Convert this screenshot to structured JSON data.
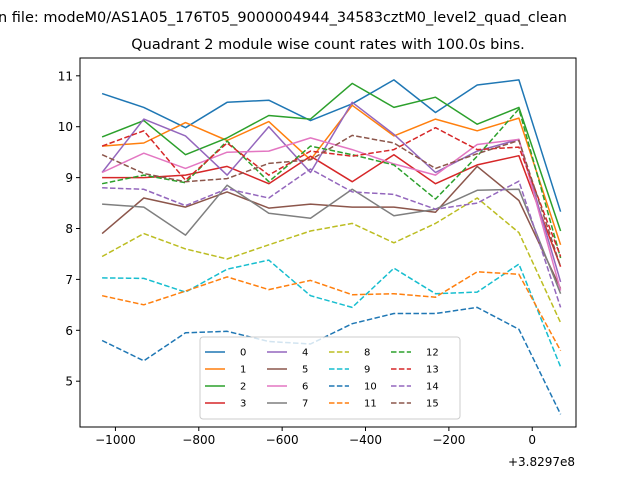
{
  "chart_data": {
    "type": "line",
    "suptitle": "n file: modeM0/AS1A05_176T05_9000004944_34583cztM0_level2_quad_clean",
    "title": "Quadrant 2 module wise count rates with 100.0s bins.",
    "xlabel": "",
    "ylabel": "",
    "x_offset_label": "+3.8297e8",
    "xlim": [
      -1085,
      105
    ],
    "ylim": [
      4.1,
      11.35
    ],
    "xticks": [
      -1000,
      -800,
      -600,
      -400,
      -200,
      0
    ],
    "xtick_labels": [
      "−1000",
      "−800",
      "−600",
      "−400",
      "−200",
      "0"
    ],
    "yticks": [
      5,
      6,
      7,
      8,
      9,
      10,
      11
    ],
    "ytick_labels": [
      "5",
      "6",
      "7",
      "8",
      "9",
      "10",
      "11"
    ],
    "legend_position": "lower center",
    "legend_columns": 4,
    "x": [
      -1032,
      -932,
      -832,
      -732,
      -632,
      -532,
      -432,
      -332,
      -232,
      -132,
      -32,
      68
    ],
    "series": [
      {
        "name": "0",
        "color": "#1f77b4",
        "dash": "solid",
        "values": [
          10.65,
          10.38,
          9.98,
          10.48,
          10.52,
          10.12,
          10.45,
          10.92,
          10.28,
          10.82,
          10.92,
          8.33
        ]
      },
      {
        "name": "1",
        "color": "#ff7f0e",
        "dash": "solid",
        "values": [
          9.62,
          9.68,
          10.08,
          9.73,
          10.1,
          9.35,
          10.42,
          9.82,
          10.15,
          9.92,
          10.17,
          7.68
        ]
      },
      {
        "name": "2",
        "color": "#2ca02c",
        "dash": "solid",
        "values": [
          9.8,
          10.12,
          9.45,
          9.78,
          10.22,
          10.15,
          10.85,
          10.38,
          10.58,
          10.05,
          10.38,
          7.95
        ]
      },
      {
        "name": "3",
        "color": "#d62728",
        "dash": "solid",
        "values": [
          9.0,
          9.0,
          9.05,
          9.22,
          8.88,
          9.42,
          8.92,
          9.45,
          8.88,
          9.25,
          9.43,
          7.25
        ]
      },
      {
        "name": "4",
        "color": "#9467bd",
        "dash": "solid",
        "values": [
          9.1,
          10.15,
          9.82,
          9.05,
          10.0,
          9.1,
          10.48,
          9.85,
          9.1,
          9.52,
          9.75,
          6.95
        ]
      },
      {
        "name": "5",
        "color": "#8c564b",
        "dash": "solid",
        "values": [
          7.9,
          8.6,
          8.42,
          8.72,
          8.4,
          8.48,
          8.42,
          8.42,
          8.32,
          9.22,
          8.55,
          6.82
        ]
      },
      {
        "name": "6",
        "color": "#e377c2",
        "dash": "solid",
        "values": [
          9.1,
          9.48,
          9.18,
          9.5,
          9.52,
          9.78,
          9.55,
          9.27,
          9.05,
          9.65,
          9.75,
          6.78
        ]
      },
      {
        "name": "7",
        "color": "#7f7f7f",
        "dash": "solid",
        "values": [
          8.48,
          8.42,
          7.87,
          8.85,
          8.3,
          8.2,
          8.77,
          8.25,
          8.38,
          8.75,
          8.77,
          6.72
        ]
      },
      {
        "name": "8",
        "color": "#bcbd22",
        "dash": "dashed",
        "values": [
          7.45,
          7.9,
          7.6,
          7.4,
          7.68,
          7.95,
          8.1,
          7.72,
          8.1,
          8.6,
          7.92,
          6.15
        ]
      },
      {
        "name": "9",
        "color": "#17becf",
        "dash": "dashed",
        "values": [
          7.03,
          7.02,
          6.75,
          7.2,
          7.38,
          6.68,
          6.45,
          7.22,
          6.72,
          6.75,
          7.3,
          5.28
        ]
      },
      {
        "name": "10",
        "color": "#1f77b4",
        "dash": "dashed",
        "values": [
          5.8,
          5.4,
          5.95,
          5.98,
          5.78,
          5.73,
          6.13,
          6.33,
          6.33,
          6.45,
          6.02,
          4.35
        ]
      },
      {
        "name": "11",
        "color": "#ff7f0e",
        "dash": "dashed",
        "values": [
          6.68,
          6.5,
          6.77,
          7.05,
          6.8,
          6.98,
          6.7,
          6.72,
          6.65,
          7.15,
          7.1,
          5.6
        ]
      },
      {
        "name": "12",
        "color": "#2ca02c",
        "dash": "dashed",
        "values": [
          8.88,
          9.05,
          8.9,
          9.72,
          8.92,
          9.62,
          9.45,
          9.25,
          8.58,
          9.42,
          10.35,
          7.42
        ]
      },
      {
        "name": "13",
        "color": "#d62728",
        "dash": "dashed",
        "values": [
          9.62,
          9.92,
          8.95,
          9.68,
          9.05,
          9.52,
          9.42,
          9.55,
          9.98,
          9.55,
          9.6,
          7.45
        ]
      },
      {
        "name": "14",
        "color": "#9467bd",
        "dash": "dashed",
        "values": [
          8.8,
          8.77,
          8.45,
          8.78,
          8.6,
          9.17,
          8.72,
          8.67,
          8.38,
          8.5,
          8.93,
          6.45
        ]
      },
      {
        "name": "15",
        "color": "#8c564b",
        "dash": "dashed",
        "values": [
          9.45,
          9.08,
          8.92,
          8.98,
          9.28,
          9.35,
          9.83,
          9.68,
          9.18,
          9.47,
          9.73,
          7.25
        ]
      }
    ]
  }
}
